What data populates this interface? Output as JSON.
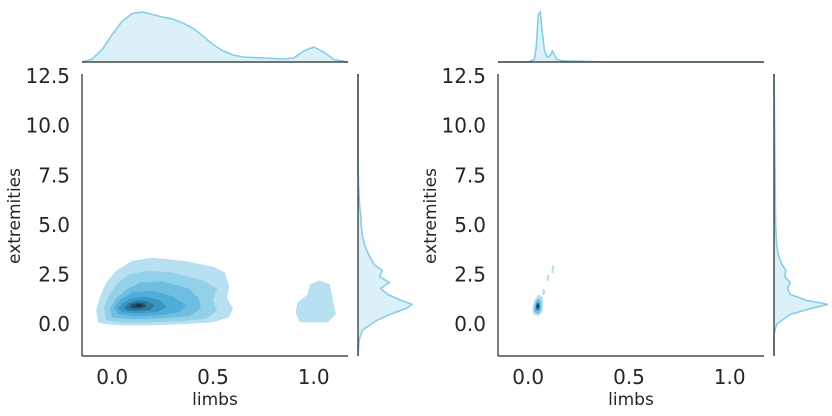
{
  "chart_data": [
    {
      "type": "kde-joint",
      "title": "",
      "xlabel": "limbs",
      "ylabel": "extremities",
      "xlim": [
        -0.15,
        1.17
      ],
      "ylim": [
        -1.6,
        12.6
      ],
      "xticks": [
        0.0,
        0.5,
        1.0
      ],
      "xtick_labels": [
        "0.0",
        "0.5",
        "1.0"
      ],
      "yticks": [
        0.0,
        2.5,
        5.0,
        7.5,
        10.0,
        12.5
      ],
      "ytick_labels": [
        "0.0",
        "2.5",
        "5.0",
        "7.5",
        "10.0",
        "12.5"
      ],
      "grid": false,
      "fill_color": "#3aa8d8",
      "marginal_color": "#87cee6",
      "contours": [
        {
          "level": 1,
          "points": [
            [
              -0.07,
              0.1
            ],
            [
              -0.03,
              0.0
            ],
            [
              0.05,
              -0.05
            ],
            [
              0.2,
              -0.05
            ],
            [
              0.35,
              0.0
            ],
            [
              0.5,
              0.1
            ],
            [
              0.58,
              0.35
            ],
            [
              0.6,
              0.8
            ],
            [
              0.57,
              1.3
            ],
            [
              0.58,
              1.9
            ],
            [
              0.56,
              2.6
            ],
            [
              0.5,
              2.9
            ],
            [
              0.35,
              3.2
            ],
            [
              0.2,
              3.35
            ],
            [
              0.1,
              3.2
            ],
            [
              0.02,
              2.7
            ],
            [
              -0.03,
              2.1
            ],
            [
              -0.06,
              1.4
            ],
            [
              -0.08,
              0.7
            ]
          ]
        },
        {
          "level": 1,
          "points": [
            [
              0.93,
              0.1
            ],
            [
              1.07,
              0.1
            ],
            [
              1.11,
              0.5
            ],
            [
              1.1,
              1.0
            ],
            [
              1.09,
              1.5
            ],
            [
              1.08,
              2.0
            ],
            [
              1.03,
              2.2
            ],
            [
              0.98,
              2.0
            ],
            [
              0.97,
              1.5
            ],
            [
              0.92,
              1.1
            ],
            [
              0.91,
              0.6
            ]
          ]
        },
        {
          "level": 2,
          "points": [
            [
              -0.03,
              0.2
            ],
            [
              0.05,
              0.1
            ],
            [
              0.2,
              0.1
            ],
            [
              0.35,
              0.15
            ],
            [
              0.47,
              0.3
            ],
            [
              0.52,
              0.7
            ],
            [
              0.5,
              1.2
            ],
            [
              0.52,
              1.8
            ],
            [
              0.45,
              2.2
            ],
            [
              0.3,
              2.6
            ],
            [
              0.18,
              2.7
            ],
            [
              0.08,
              2.5
            ],
            [
              0.02,
              2.0
            ],
            [
              -0.02,
              1.4
            ],
            [
              -0.04,
              0.8
            ]
          ]
        },
        {
          "level": 3,
          "points": [
            [
              0.0,
              0.35
            ],
            [
              0.1,
              0.25
            ],
            [
              0.25,
              0.3
            ],
            [
              0.38,
              0.4
            ],
            [
              0.44,
              0.8
            ],
            [
              0.43,
              1.3
            ],
            [
              0.38,
              1.8
            ],
            [
              0.25,
              2.15
            ],
            [
              0.14,
              2.1
            ],
            [
              0.07,
              1.75
            ],
            [
              0.02,
              1.3
            ],
            [
              -0.01,
              0.8
            ]
          ]
        },
        {
          "level": 4,
          "points": [
            [
              0.03,
              0.5
            ],
            [
              0.12,
              0.4
            ],
            [
              0.24,
              0.45
            ],
            [
              0.33,
              0.6
            ],
            [
              0.37,
              0.95
            ],
            [
              0.3,
              1.4
            ],
            [
              0.2,
              1.7
            ],
            [
              0.1,
              1.6
            ],
            [
              0.04,
              1.25
            ],
            [
              0.01,
              0.85
            ]
          ]
        },
        {
          "level": 5,
          "points": [
            [
              0.05,
              0.6
            ],
            [
              0.13,
              0.55
            ],
            [
              0.22,
              0.6
            ],
            [
              0.27,
              0.85
            ],
            [
              0.24,
              1.2
            ],
            [
              0.16,
              1.38
            ],
            [
              0.09,
              1.3
            ],
            [
              0.05,
              1.05
            ],
            [
              0.03,
              0.8
            ]
          ]
        },
        {
          "level": 6,
          "points": [
            [
              0.07,
              0.7
            ],
            [
              0.13,
              0.66
            ],
            [
              0.19,
              0.72
            ],
            [
              0.21,
              0.95
            ],
            [
              0.17,
              1.18
            ],
            [
              0.12,
              1.2
            ],
            [
              0.08,
              1.05
            ],
            [
              0.06,
              0.85
            ]
          ]
        },
        {
          "level": 7,
          "points": [
            [
              0.09,
              0.8
            ],
            [
              0.14,
              0.78
            ],
            [
              0.17,
              0.88
            ],
            [
              0.16,
              1.05
            ],
            [
              0.12,
              1.08
            ],
            [
              0.09,
              0.98
            ]
          ]
        },
        {
          "level": 8,
          "points": [
            [
              0.11,
              0.88
            ],
            [
              0.14,
              0.86
            ],
            [
              0.155,
              0.94
            ],
            [
              0.14,
              1.0
            ],
            [
              0.12,
              1.0
            ]
          ]
        }
      ],
      "marginal_x": {
        "x": [
          -0.15,
          -0.1,
          -0.05,
          0.0,
          0.05,
          0.1,
          0.15,
          0.2,
          0.25,
          0.3,
          0.35,
          0.4,
          0.45,
          0.5,
          0.55,
          0.6,
          0.65,
          0.7,
          0.75,
          0.8,
          0.85,
          0.9,
          0.95,
          1.0,
          1.05,
          1.1,
          1.17
        ],
        "y": [
          0.0,
          0.06,
          0.25,
          0.55,
          0.82,
          0.97,
          1.0,
          0.95,
          0.9,
          0.86,
          0.78,
          0.68,
          0.52,
          0.35,
          0.22,
          0.14,
          0.1,
          0.09,
          0.08,
          0.07,
          0.06,
          0.08,
          0.22,
          0.3,
          0.2,
          0.05,
          0.0
        ]
      },
      "marginal_y": {
        "y": [
          -1.6,
          -0.8,
          -0.3,
          0.2,
          0.5,
          0.8,
          1.0,
          1.2,
          1.5,
          1.8,
          2.1,
          2.4,
          2.7,
          3.0,
          3.5,
          4.0,
          4.5,
          5.0,
          5.5,
          6.0,
          7.0,
          8.0,
          9.0,
          12.6
        ],
        "x": [
          0.0,
          0.02,
          0.08,
          0.35,
          0.6,
          0.9,
          1.0,
          0.8,
          0.55,
          0.42,
          0.58,
          0.4,
          0.45,
          0.3,
          0.2,
          0.12,
          0.08,
          0.06,
          0.05,
          0.03,
          0.01,
          0.0,
          0.0,
          0.0
        ]
      }
    },
    {
      "type": "kde-joint",
      "title": "",
      "xlabel": "limbs",
      "ylabel": "extremities",
      "xlim": [
        -0.15,
        1.17
      ],
      "ylim": [
        -1.6,
        12.6
      ],
      "xticks": [
        0.0,
        0.5,
        1.0
      ],
      "xtick_labels": [
        "0.0",
        "0.5",
        "1.0"
      ],
      "yticks": [
        0.0,
        2.5,
        5.0,
        7.5,
        10.0,
        12.5
      ],
      "ytick_labels": [
        "0.0",
        "2.5",
        "5.0",
        "7.5",
        "10.0",
        "12.5"
      ],
      "grid": false,
      "fill_color": "#3aa8d8",
      "marginal_color": "#87cee6",
      "contours": [
        {
          "level": 1,
          "points": [
            [
              0.025,
              0.5
            ],
            [
              0.05,
              0.4
            ],
            [
              0.07,
              0.6
            ],
            [
              0.075,
              1.0
            ],
            [
              0.07,
              1.4
            ],
            [
              0.05,
              1.5
            ],
            [
              0.03,
              1.2
            ],
            [
              0.02,
              0.8
            ]
          ]
        },
        {
          "level": 1,
          "points": [
            [
              0.07,
              1.5
            ],
            [
              0.08,
              1.45
            ],
            [
              0.085,
              1.7
            ],
            [
              0.075,
              1.8
            ],
            [
              0.068,
              1.65
            ]
          ]
        },
        {
          "level": 1,
          "points": [
            [
              0.09,
              2.2
            ],
            [
              0.1,
              2.15
            ],
            [
              0.105,
              2.45
            ],
            [
              0.095,
              2.5
            ]
          ]
        },
        {
          "level": 1,
          "points": [
            [
              0.115,
              2.6
            ],
            [
              0.125,
              2.55
            ],
            [
              0.13,
              2.95
            ],
            [
              0.12,
              3.0
            ]
          ]
        },
        {
          "level": 3,
          "points": [
            [
              0.03,
              0.6
            ],
            [
              0.05,
              0.5
            ],
            [
              0.065,
              0.75
            ],
            [
              0.065,
              1.1
            ],
            [
              0.055,
              1.3
            ],
            [
              0.04,
              1.2
            ],
            [
              0.03,
              0.9
            ]
          ]
        },
        {
          "level": 6,
          "points": [
            [
              0.037,
              0.75
            ],
            [
              0.05,
              0.68
            ],
            [
              0.058,
              0.85
            ],
            [
              0.056,
              1.05
            ],
            [
              0.045,
              1.1
            ],
            [
              0.038,
              0.95
            ]
          ]
        },
        {
          "level": 8,
          "points": [
            [
              0.042,
              0.85
            ],
            [
              0.05,
              0.82
            ],
            [
              0.053,
              0.9
            ],
            [
              0.05,
              1.0
            ],
            [
              0.044,
              0.98
            ]
          ]
        }
      ],
      "marginal_x": {
        "x": [
          -0.15,
          0.0,
          0.03,
          0.04,
          0.05,
          0.06,
          0.07,
          0.08,
          0.09,
          0.1,
          0.11,
          0.12,
          0.13,
          0.14,
          0.16,
          0.2,
          0.3,
          0.4,
          1.17
        ],
        "y": [
          0.0,
          0.0,
          0.05,
          0.3,
          0.95,
          1.0,
          0.6,
          0.25,
          0.12,
          0.1,
          0.13,
          0.22,
          0.15,
          0.06,
          0.03,
          0.02,
          0.01,
          0.0,
          0.0
        ]
      },
      "marginal_y": {
        "y": [
          -1.6,
          -0.5,
          0.0,
          0.5,
          0.8,
          1.0,
          1.2,
          1.5,
          1.8,
          2.1,
          2.4,
          2.7,
          3.0,
          3.5,
          4.0,
          5.0,
          12.6
        ],
        "x": [
          0.0,
          0.0,
          0.05,
          0.3,
          0.7,
          1.0,
          0.6,
          0.3,
          0.25,
          0.3,
          0.2,
          0.22,
          0.15,
          0.08,
          0.05,
          0.03,
          0.0
        ]
      }
    }
  ]
}
